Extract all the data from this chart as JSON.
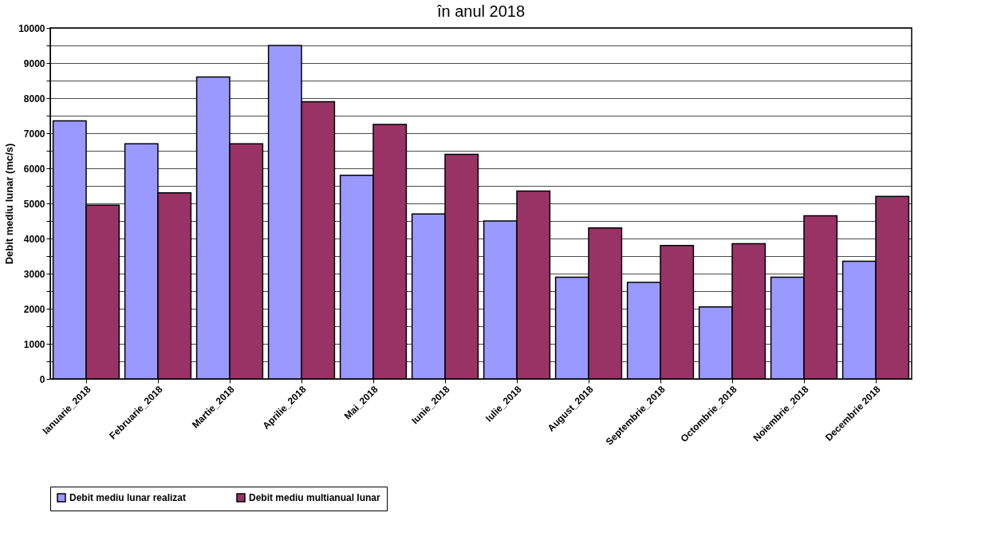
{
  "chart_data": {
    "type": "bar",
    "title": "în anul 2018",
    "ylabel": "Debit mediu lunar (mc/s)",
    "categories": [
      "Ianuarie_2018",
      "Februarie_2018",
      "Martie_2018",
      "Aprilie_2018",
      "Mai_2018",
      "Iunie_2018",
      "Iulie_2018",
      "August_2018",
      "Septembrie_2018",
      "Octombrie_2018",
      "Noiembrie_2018",
      "Decembrie 2018"
    ],
    "series": [
      {
        "name": "Debit mediu lunar realizat",
        "color": "#9999ff",
        "values": [
          7350,
          6700,
          8600,
          9500,
          5800,
          4700,
          4500,
          2900,
          2750,
          2050,
          2900,
          3350
        ]
      },
      {
        "name": "Debit mediu multianual lunar",
        "color": "#993366",
        "values": [
          4950,
          5300,
          6700,
          7900,
          7250,
          6400,
          5350,
          4300,
          3800,
          3850,
          4650,
          5200
        ]
      }
    ],
    "ylim": [
      0,
      10000
    ],
    "yticks": [
      0,
      {
        "value": 500,
        "label": null
      },
      1000,
      {
        "value": 1500,
        "label": null
      },
      2000,
      {
        "value": 2500,
        "label": null
      },
      3000,
      {
        "value": 3500,
        "label": null
      },
      4000,
      {
        "value": 4500,
        "label": null
      },
      5000,
      {
        "value": 5500,
        "label": null
      },
      6000,
      {
        "value": 6500,
        "label": null
      },
      7000,
      {
        "value": 7500,
        "label": null
      },
      8000,
      {
        "value": 8500,
        "label": null
      },
      9000,
      {
        "value": 9500,
        "label": null
      },
      10000
    ],
    "grid": "y",
    "legend": "bottom"
  }
}
